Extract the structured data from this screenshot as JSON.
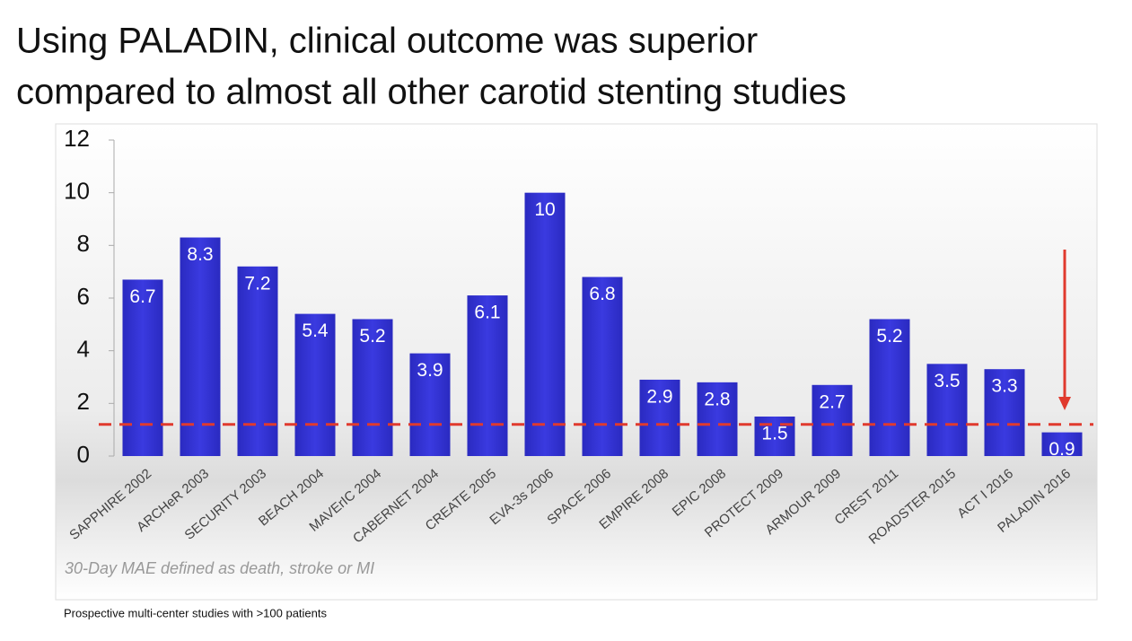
{
  "chart_data": {
    "type": "bar",
    "title": [
      "Using PALADIN, clinical outcome was superior",
      "compared to almost all other carotid stenting studies"
    ],
    "categories": [
      "SAPPHIRE 2002",
      "ARCHeR 2003",
      "SECURITY 2003",
      "BEACH 2004",
      "MAVErIC 2004",
      "CABERNET 2004",
      "CREATE 2005",
      "EVA-3s 2006",
      "SPACE 2006",
      "EMPIRE 2008",
      "EPIC 2008",
      "PROTECT 2009",
      "ARMOUR 2009",
      "CREST 2011",
      "ROADSTER 2015",
      "ACT I 2016",
      "PALADIN 2016"
    ],
    "values": [
      6.7,
      8.3,
      7.2,
      5.4,
      5.2,
      3.9,
      6.1,
      10,
      6.8,
      2.9,
      2.8,
      1.5,
      2.7,
      5.2,
      3.5,
      3.3,
      0.9
    ],
    "color": "#3434d2",
    "ylim": [
      0,
      12
    ],
    "yticks": [
      0,
      2,
      4,
      6,
      8,
      10,
      12
    ],
    "reference_line": {
      "value": 1.2,
      "color": "#e03a2e"
    },
    "annotation": "30-Day MAE defined as death, stroke or MI",
    "footnote": "Prospective multi-center studies with >100 patients"
  }
}
